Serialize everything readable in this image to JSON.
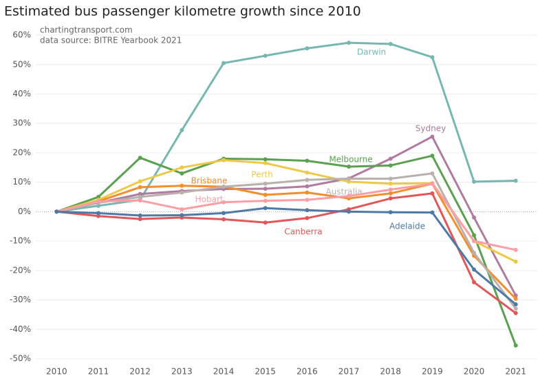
{
  "chart_data": {
    "type": "line",
    "title": "Estimated bus passenger kilometre growth since 2010",
    "annotations": [
      "chartingtransport.com",
      "data source: BITRE Yearbook 2021"
    ],
    "x": [
      2010,
      2011,
      2012,
      2013,
      2014,
      2015,
      2016,
      2017,
      2018,
      2019,
      2020,
      2021
    ],
    "xlim": [
      2009.5,
      2021.5
    ],
    "xticks": [
      2010,
      2011,
      2012,
      2013,
      2014,
      2015,
      2016,
      2017,
      2018,
      2019,
      2020,
      2021
    ],
    "ylim": [
      -52.5,
      62
    ],
    "yticks": [
      {
        "value": -50,
        "label": "-50%"
      },
      {
        "value": -40,
        "label": "-40%"
      },
      {
        "value": -30,
        "label": "-30%"
      },
      {
        "value": -20,
        "label": "-20%"
      },
      {
        "value": -10,
        "label": "-10%"
      },
      {
        "value": 0,
        "label": "0%"
      },
      {
        "value": 10,
        "label": "10%"
      },
      {
        "value": 20,
        "label": "20%"
      },
      {
        "value": 30,
        "label": "30%"
      },
      {
        "value": 40,
        "label": "40%"
      },
      {
        "value": 50,
        "label": "50%"
      },
      {
        "value": 60,
        "label": "60%"
      }
    ],
    "grid": true,
    "series": [
      {
        "name": "Darwin",
        "color": "#76b7b2",
        "values": [
          0,
          2,
          4,
          27.7,
          50.5,
          53,
          55.5,
          57.4,
          57,
          52.5,
          10.2,
          10.5
        ]
      },
      {
        "name": "Sydney",
        "color": "#b07aa1",
        "values": [
          0,
          3,
          6,
          7,
          7.7,
          7.8,
          8.6,
          11.3,
          18,
          25.5,
          -2,
          -28.5
        ]
      },
      {
        "name": "Melbourne",
        "color": "#59a14f",
        "values": [
          0,
          5,
          18.3,
          13,
          18,
          17.8,
          17.3,
          15.3,
          15.7,
          19,
          -8,
          -45.5
        ]
      },
      {
        "name": "Perth",
        "color": "#edc948",
        "values": [
          0,
          4,
          10.3,
          15,
          17.5,
          16.5,
          13.3,
          10.2,
          9.5,
          9.7,
          -10,
          -17
        ]
      },
      {
        "name": "Brisbane",
        "color": "#f28e2b",
        "values": [
          0,
          3.5,
          8.3,
          8.8,
          8.5,
          5.7,
          6.5,
          4.5,
          6.2,
          9.5,
          -15,
          -29.6
        ]
      },
      {
        "name": "Australia",
        "color": "#bab0ac",
        "values": [
          0,
          3,
          5,
          6.5,
          8.5,
          9.5,
          10.8,
          11.2,
          11.2,
          13,
          -14,
          -33
        ]
      },
      {
        "name": "Hobart",
        "color": "#ff9da7",
        "values": [
          0,
          3.5,
          3.8,
          0.8,
          3.2,
          3.7,
          4,
          5.3,
          7.5,
          9.5,
          -10,
          -13
        ]
      },
      {
        "name": "Canberra",
        "color": "#e15759",
        "values": [
          0,
          -1.5,
          -2.5,
          -2,
          -2.6,
          -3.7,
          -2.2,
          0.8,
          4.5,
          6.2,
          -24,
          -34.5
        ]
      },
      {
        "name": "Adelaide",
        "color": "#4e79a7",
        "values": [
          0,
          -0.5,
          -1.3,
          -1.2,
          -0.5,
          1.2,
          0.5,
          0,
          -0.2,
          -0.3,
          -19.7,
          -31.5
        ]
      }
    ]
  }
}
